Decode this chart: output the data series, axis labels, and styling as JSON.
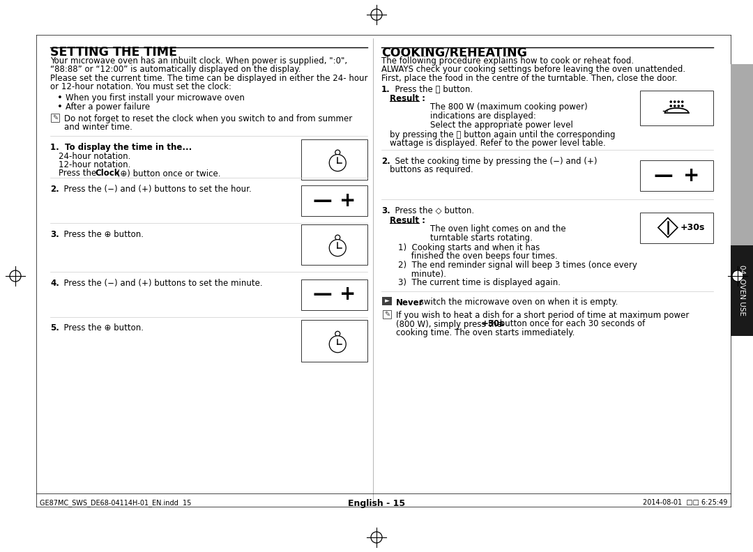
{
  "bg_color": "#ffffff",
  "left_title": "SETTING THE TIME",
  "right_title": "COOKING/REHEATING",
  "footer_text": "English - 15",
  "footer_left": "GE87MC_SWS_DE68-04114H-01_EN.indd  15",
  "footer_right": "2014-08-01  □□ 6:25:49",
  "left_body": [
    "Your microwave oven has an inbuilt clock. When power is supplied, \":0\",",
    "“88:88” or “12:00” is automatically displayed on the display.",
    "Please set the current time. The time can be displayed in either the 24- hour",
    "or 12-hour notation. You must set the clock:"
  ],
  "left_bullets": [
    "When you first install your microwave oven",
    "After a power failure"
  ],
  "note_text_1": "Do not forget to reset the clock when you switch to and from summer",
  "note_text_2": "and winter time.",
  "step1_bold": "1.  To display the time in the...",
  "step1_sub1": "24-hour notation.",
  "step1_sub2": "12-hour notation.",
  "step1_sub3_pre": "Press the ",
  "step1_sub3_bold": "Clock",
  "step1_sub3_post": " (⊕) button once or twice.",
  "step2_bold": "2.",
  "step2_rest": "  Press the (−) and (+) buttons to set the hour.",
  "step3_bold": "3.",
  "step3_rest": "  Press the ⊕ button.",
  "step4_bold": "4.",
  "step4_rest": "  Press the (−) and (+) buttons to set the minute.",
  "step5_bold": "5.",
  "step5_rest": "  Press the ⊕ button.",
  "right_body": [
    "The following procedure explains how to cook or reheat food.",
    "ALWAYS check your cooking settings before leaving the oven unattended.",
    "First, place the food in the centre of the turntable. Then, close the door."
  ],
  "rs1_bold": "1.",
  "rs1_rest": "  Press the Ⓔ button.",
  "rs1_result_label": "Result :",
  "rs1_r1": "The 800 W (maximum cooking power)",
  "rs1_r2": "indications are displayed:",
  "rs1_r3": "Select the appropriate power level",
  "rs1_r4": "by pressing the Ⓔ button again until the corresponding",
  "rs1_r5": "wattage is displayed. Refer to the power level table.",
  "rs2_bold": "2.",
  "rs2_rest1": "  Set the cooking time by pressing the (−) and (+)",
  "rs2_rest2": "buttons as required.",
  "rs3_bold": "3.",
  "rs3_rest": "  Press the ◇ button.",
  "rs3_result_label": "Result :",
  "rs3_r1": "The oven light comes on and the",
  "rs3_r2": "turntable starts rotating.",
  "rs3_n1a": "1)  Cooking starts and when it has",
  "rs3_n1b": "     finished the oven beeps four times.",
  "rs3_n2a": "2)  The end reminder signal will beep 3 times (once every",
  "rs3_n2b": "     minute).",
  "rs3_n3": "3)  The current time is displayed again.",
  "never_bold": "Never",
  "never_rest": " switch the microwave oven on when it is empty.",
  "tip1": "If you wish to heat a dish for a short period of time at maximum power",
  "tip2a": "(800 W), simply press the ",
  "tip2b": "+30s",
  "tip2c": " button once for each 30 seconds of",
  "tip3": "cooking time. The oven starts immediately.",
  "oven_use_label": "04  OVEN USE"
}
